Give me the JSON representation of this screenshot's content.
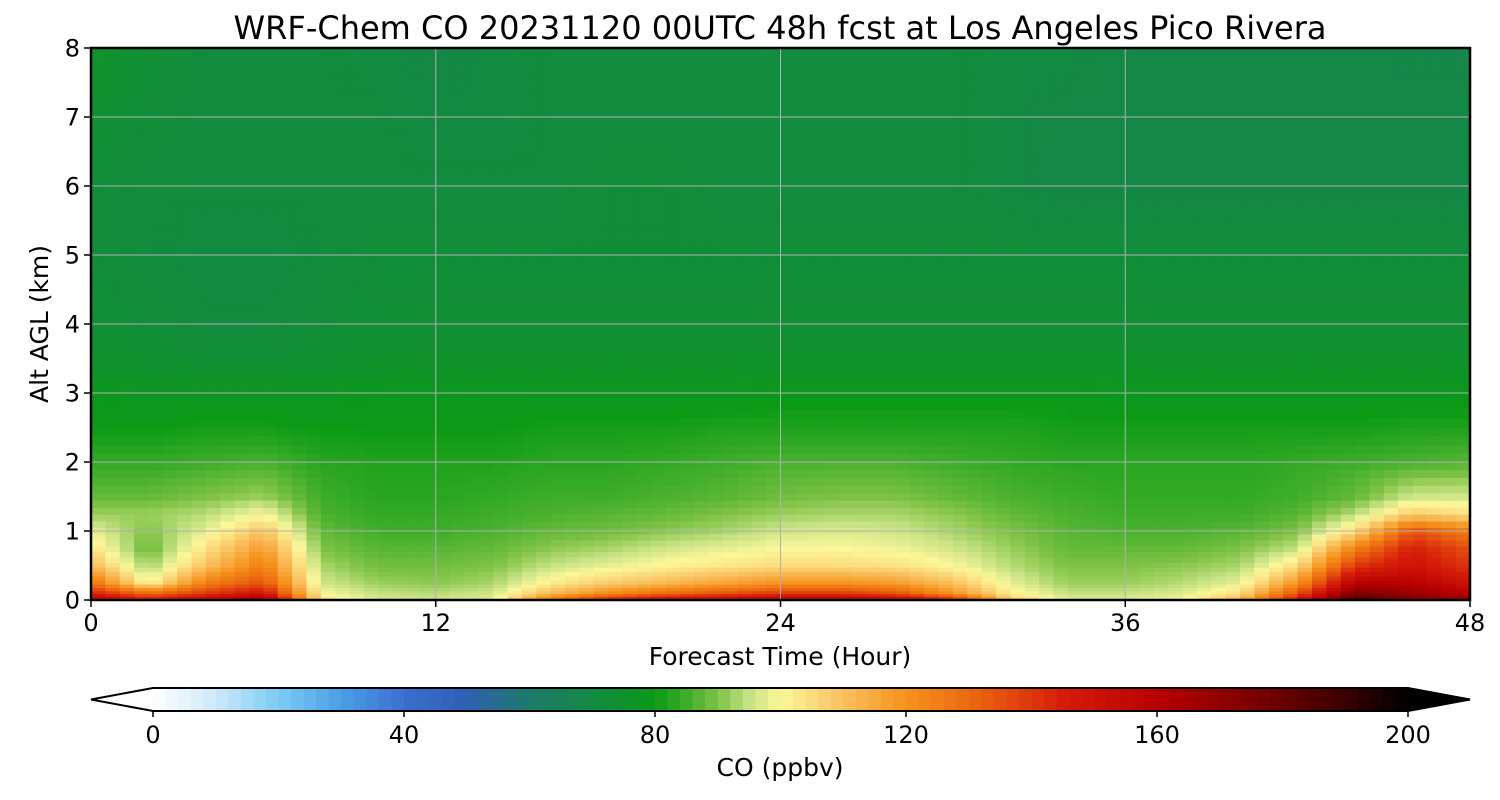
{
  "chart_data": {
    "type": "heatmap",
    "title": "WRF-Chem CO  20231120 00UTC 48h fcst at Los Angeles Pico Rivera",
    "xlabel": "Forecast Time (Hour)",
    "ylabel": "Alt AGL (km)",
    "xlim": [
      0,
      48
    ],
    "ylim": [
      0,
      8
    ],
    "xticks": [
      "0",
      "12",
      "24",
      "36",
      "48"
    ],
    "yticks": [
      "0",
      "1",
      "2",
      "3",
      "4",
      "5",
      "6",
      "7",
      "8"
    ],
    "grid": true,
    "x": [
      0,
      2,
      4,
      6,
      8,
      10,
      12,
      14,
      16,
      18,
      20,
      22,
      24,
      26,
      28,
      30,
      32,
      34,
      36,
      38,
      40,
      42,
      44,
      46,
      48
    ],
    "y": [
      0,
      0.1,
      0.25,
      0.5,
      0.75,
      1.0,
      1.25,
      1.5,
      2.0,
      2.5,
      3.0,
      3.5,
      4.0,
      5.0,
      6.0,
      7.0,
      8.0
    ],
    "z": [
      [
        165,
        150,
        160,
        170,
        105,
        97,
        96,
        98,
        130,
        150,
        158,
        162,
        165,
        165,
        162,
        150,
        110,
        98,
        98,
        100,
        115,
        150,
        190,
        175,
        170
      ],
      [
        145,
        130,
        140,
        150,
        100,
        95,
        94,
        96,
        112,
        122,
        130,
        135,
        140,
        140,
        135,
        120,
        102,
        95,
        95,
        97,
        105,
        135,
        175,
        168,
        160
      ],
      [
        128,
        100,
        125,
        135,
        96,
        92,
        91,
        93,
        102,
        108,
        112,
        116,
        120,
        120,
        118,
        110,
        98,
        92,
        92,
        94,
        98,
        120,
        160,
        160,
        150
      ],
      [
        112,
        92,
        110,
        125,
        93,
        89,
        89,
        90,
        95,
        98,
        101,
        103,
        105,
        105,
        104,
        100,
        94,
        90,
        90,
        91,
        93,
        105,
        140,
        150,
        140
      ],
      [
        104,
        88,
        104,
        118,
        90,
        87,
        87,
        88,
        91,
        93,
        96,
        98,
        100,
        100,
        99,
        96,
        92,
        88,
        88,
        88,
        90,
        95,
        125,
        145,
        135
      ],
      [
        98,
        90,
        98,
        110,
        88,
        85,
        85,
        86,
        88,
        89,
        91,
        93,
        96,
        97,
        96,
        93,
        90,
        87,
        86,
        86,
        87,
        90,
        105,
        135,
        125
      ],
      [
        92,
        92,
        94,
        100,
        86,
        84,
        84,
        85,
        86,
        87,
        88,
        90,
        92,
        93,
        93,
        91,
        88,
        86,
        85,
        85,
        85,
        87,
        94,
        108,
        104
      ],
      [
        88,
        88,
        90,
        92,
        85,
        83,
        83,
        84,
        85,
        85,
        86,
        87,
        89,
        90,
        90,
        88,
        86,
        85,
        84,
        84,
        84,
        85,
        88,
        96,
        96
      ],
      [
        84,
        84,
        85,
        86,
        83,
        82,
        82,
        82,
        83,
        83,
        84,
        85,
        86,
        86,
        86,
        85,
        84,
        83,
        83,
        83,
        83,
        84,
        85,
        86,
        87
      ],
      [
        80,
        80,
        81,
        81,
        80,
        80,
        80,
        80,
        81,
        81,
        81,
        82,
        82,
        82,
        82,
        82,
        82,
        81,
        81,
        81,
        81,
        81,
        81,
        82,
        82
      ],
      [
        78,
        77,
        77,
        77,
        77,
        78,
        78,
        78,
        78,
        78,
        78,
        78,
        79,
        79,
        79,
        79,
        79,
        79,
        78,
        78,
        78,
        78,
        78,
        78,
        78
      ],
      [
        75,
        74,
        73,
        73,
        74,
        75,
        75,
        75,
        75,
        75,
        75,
        75,
        75,
        75,
        75,
        75,
        75,
        75,
        75,
        75,
        75,
        75,
        75,
        75,
        75
      ],
      [
        73,
        72,
        71,
        71,
        72,
        73,
        73,
        73,
        73,
        73,
        73,
        73,
        73,
        73,
        73,
        73,
        73,
        73,
        73,
        73,
        73,
        73,
        73,
        73,
        73
      ],
      [
        72,
        71,
        70,
        70,
        71,
        72,
        72,
        72,
        72,
        72,
        72,
        72,
        72,
        72,
        72,
        72,
        72,
        72,
        72,
        72,
        72,
        72,
        72,
        72,
        72
      ],
      [
        72,
        71,
        71,
        71,
        71,
        71,
        71,
        71,
        71,
        72,
        72,
        71,
        71,
        71,
        71,
        71,
        70,
        69,
        69,
        69,
        69,
        69,
        69,
        69,
        69
      ],
      [
        74,
        72,
        71,
        71,
        71,
        71,
        70,
        70,
        71,
        71,
        71,
        71,
        71,
        71,
        71,
        71,
        70,
        69,
        69,
        69,
        69,
        69,
        69,
        69,
        69
      ],
      [
        76,
        73,
        71,
        71,
        71,
        70,
        69,
        70,
        71,
        71,
        71,
        71,
        71,
        71,
        71,
        71,
        70,
        70,
        69,
        69,
        69,
        69,
        69,
        68,
        68
      ]
    ],
    "colorbar": {
      "label": "CO  (ppbv)",
      "ticks": [
        "0",
        "40",
        "80",
        "120",
        "160",
        "200"
      ],
      "min": 0,
      "max": 200,
      "extend": "both",
      "colormap": [
        [
          0,
          "#ffffff"
        ],
        [
          10,
          "#cde9f8"
        ],
        [
          20,
          "#7ccbf3"
        ],
        [
          30,
          "#4b9fe6"
        ],
        [
          40,
          "#3a6fd0"
        ],
        [
          50,
          "#2f5fb3"
        ],
        [
          60,
          "#1d7a6a"
        ],
        [
          70,
          "#138a42"
        ],
        [
          80,
          "#0b9a15"
        ],
        [
          85,
          "#3ead2a"
        ],
        [
          90,
          "#7ec245"
        ],
        [
          95,
          "#c7e283"
        ],
        [
          100,
          "#fbf79a"
        ],
        [
          110,
          "#fac05f"
        ],
        [
          120,
          "#f6921c"
        ],
        [
          130,
          "#ec6a10"
        ],
        [
          145,
          "#d61d0a"
        ],
        [
          160,
          "#b80000"
        ],
        [
          175,
          "#7e0000"
        ],
        [
          190,
          "#3a0000"
        ],
        [
          200,
          "#000000"
        ]
      ]
    }
  }
}
